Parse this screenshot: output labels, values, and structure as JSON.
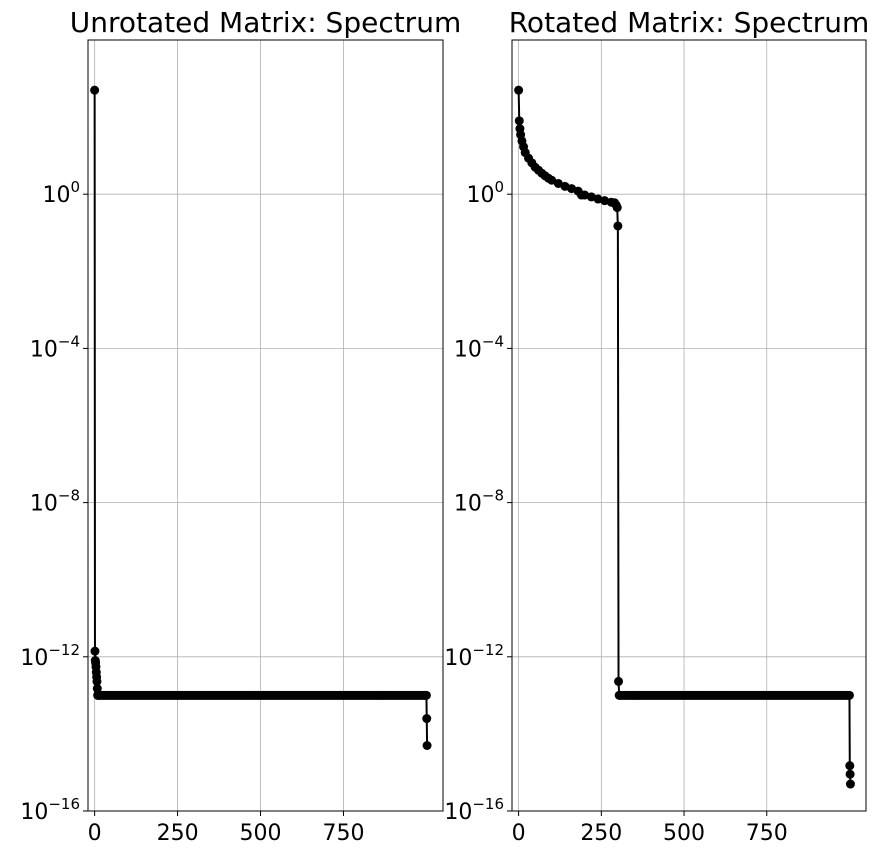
{
  "chart_data": [
    {
      "type": "line",
      "title": "Unrotated Matrix: Spectrum",
      "xlabel": "",
      "ylabel": "",
      "yscale": "log",
      "xlim": [
        -20,
        1050
      ],
      "ylim": [
        1e-16,
        10000.0
      ],
      "grid": true,
      "marker": "circle",
      "color": "#000000",
      "xticks": [
        0,
        250,
        500,
        750
      ],
      "xtick_labels": [
        "0",
        "250",
        "500",
        "750"
      ],
      "yticks": [
        1.0,
        0.0001,
        1e-08,
        1e-12,
        1e-16
      ],
      "ytick_labels": [
        {
          "base": "10",
          "exp": "0"
        },
        {
          "base": "10",
          "exp": "−4"
        },
        {
          "base": "10",
          "exp": "−8"
        },
        {
          "base": "10",
          "exp": "−12"
        },
        {
          "base": "10",
          "exp": "−16"
        }
      ],
      "series": [
        {
          "points": [
            [
              0,
              500
            ],
            [
              1,
              1.4e-12
            ],
            [
              2,
              8e-13
            ],
            [
              3,
              7e-13
            ],
            [
              4,
              5.5e-13
            ],
            [
              5,
              4e-13
            ],
            [
              6,
              3e-13
            ],
            [
              7,
              2.3e-13
            ],
            [
              8,
              1.5e-13
            ],
            [
              9,
              1e-13
            ],
            [
              10,
              1e-13
            ],
            [
              1000,
              1e-13
            ],
            [
              1001,
              2.5e-14
            ],
            [
              1002,
              5e-15
            ]
          ]
        }
      ]
    },
    {
      "type": "line",
      "title": "Rotated Matrix: Spectrum",
      "xlabel": "",
      "ylabel": "",
      "yscale": "log",
      "xlim": [
        -20,
        1050
      ],
      "ylim": [
        1e-16,
        10000.0
      ],
      "grid": true,
      "marker": "circle",
      "color": "#000000",
      "xticks": [
        0,
        250,
        500,
        750
      ],
      "xtick_labels": [
        "0",
        "250",
        "500",
        "750"
      ],
      "yticks": [
        1.0,
        0.0001,
        1e-08,
        1e-12,
        1e-16
      ],
      "ytick_labels": [
        {
          "base": "10",
          "exp": "0"
        },
        {
          "base": "10",
          "exp": "−4"
        },
        {
          "base": "10",
          "exp": "−8"
        },
        {
          "base": "10",
          "exp": "−12"
        },
        {
          "base": "10",
          "exp": "−16"
        }
      ],
      "series": [
        {
          "points": [
            [
              0,
              500
            ],
            [
              2,
              80
            ],
            [
              4,
              50
            ],
            [
              6,
              35
            ],
            [
              10,
              24
            ],
            [
              15,
              17
            ],
            [
              20,
              12
            ],
            [
              30,
              8.6
            ],
            [
              40,
              6.5
            ],
            [
              50,
              5
            ],
            [
              60,
              4.2
            ],
            [
              70,
              3.5
            ],
            [
              80,
              3
            ],
            [
              90,
              2.6
            ],
            [
              100,
              2.3
            ],
            [
              120,
              1.9
            ],
            [
              140,
              1.6
            ],
            [
              160,
              1.4
            ],
            [
              180,
              1.2
            ],
            [
              190,
              0.95
            ],
            [
              200,
              0.95
            ],
            [
              220,
              0.85
            ],
            [
              240,
              0.75
            ],
            [
              260,
              0.68
            ],
            [
              280,
              0.62
            ],
            [
              290,
              0.6
            ],
            [
              295,
              0.52
            ],
            [
              298,
              0.45
            ],
            [
              300,
              0.15
            ],
            [
              302,
              2.3e-13
            ],
            [
              304,
              1e-13
            ],
            [
              1000,
              1e-13
            ],
            [
              1001,
              1.5e-15
            ],
            [
              1002,
              9e-16
            ],
            [
              1003,
              5e-16
            ]
          ]
        }
      ]
    }
  ]
}
